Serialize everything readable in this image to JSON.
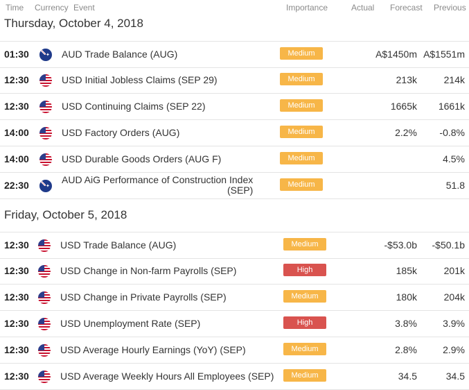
{
  "headers": {
    "time": "Time",
    "currency": "Currency",
    "event": "Event",
    "importance": "Importance",
    "actual": "Actual",
    "forecast": "Forecast",
    "previous": "Previous"
  },
  "days": [
    {
      "title": "Thursday, October 4, 2018",
      "rows": [
        {
          "time": "01:30",
          "flag": "au",
          "event": "AUD Trade Balance (AUG)",
          "importance": "Medium",
          "level": "medium",
          "actual": "",
          "forecast": "A$1450m",
          "previous": "A$1551m"
        },
        {
          "time": "12:30",
          "flag": "us",
          "event": "USD Initial Jobless Claims (SEP 29)",
          "importance": "Medium",
          "level": "medium",
          "actual": "",
          "forecast": "213k",
          "previous": "214k"
        },
        {
          "time": "12:30",
          "flag": "us",
          "event": "USD Continuing Claims (SEP 22)",
          "importance": "Medium",
          "level": "medium",
          "actual": "",
          "forecast": "1665k",
          "previous": "1661k"
        },
        {
          "time": "14:00",
          "flag": "us",
          "event": "USD Factory Orders (AUG)",
          "importance": "Medium",
          "level": "medium",
          "actual": "",
          "forecast": "2.2%",
          "previous": "-0.8%"
        },
        {
          "time": "14:00",
          "flag": "us",
          "event": "USD Durable Goods Orders (AUG F)",
          "importance": "Medium",
          "level": "medium",
          "actual": "",
          "forecast": "",
          "previous": "4.5%"
        },
        {
          "time": "22:30",
          "flag": "au",
          "event": "AUD AiG Performance of Construction Index",
          "event2": "(SEP)",
          "importance": "Medium",
          "level": "medium",
          "actual": "",
          "forecast": "",
          "previous": "51.8"
        }
      ]
    },
    {
      "title": "Friday, October 5, 2018",
      "rows": [
        {
          "time": "12:30",
          "flag": "us",
          "event": "USD Trade Balance (AUG)",
          "importance": "Medium",
          "level": "medium",
          "actual": "",
          "forecast": "-$53.0b",
          "previous": "-$50.1b"
        },
        {
          "time": "12:30",
          "flag": "us",
          "event": "USD Change in Non-farm Payrolls (SEP)",
          "importance": "High",
          "level": "high",
          "actual": "",
          "forecast": "185k",
          "previous": "201k"
        },
        {
          "time": "12:30",
          "flag": "us",
          "event": "USD Change in Private Payrolls (SEP)",
          "importance": "Medium",
          "level": "medium",
          "actual": "",
          "forecast": "180k",
          "previous": "204k"
        },
        {
          "time": "12:30",
          "flag": "us",
          "event": "USD Unemployment Rate (SEP)",
          "importance": "High",
          "level": "high",
          "actual": "",
          "forecast": "3.8%",
          "previous": "3.9%"
        },
        {
          "time": "12:30",
          "flag": "us",
          "event": "USD Average Hourly Earnings (YoY) (SEP)",
          "importance": "Medium",
          "level": "medium",
          "actual": "",
          "forecast": "2.8%",
          "previous": "2.9%"
        },
        {
          "time": "12:30",
          "flag": "us",
          "event": "USD Average Weekly Hours All Employees (SEP)",
          "importance": "Medium",
          "level": "medium",
          "actual": "",
          "forecast": "34.5",
          "previous": "34.5"
        }
      ]
    }
  ]
}
